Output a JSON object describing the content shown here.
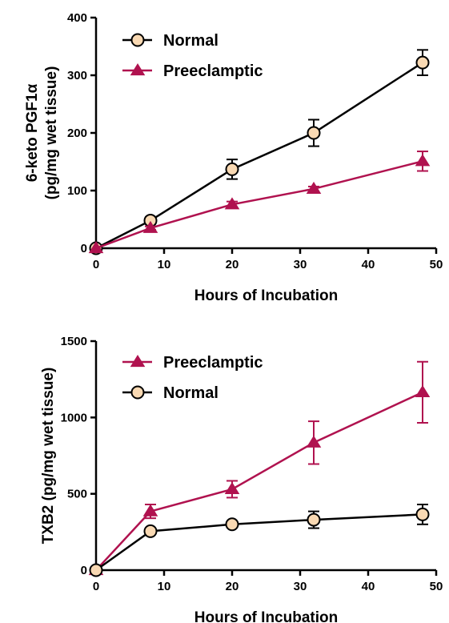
{
  "chart_data": [
    {
      "type": "line",
      "title": "",
      "xlabel": "Hours of Incubation",
      "ylabel_lines": [
        "6-keto PGF1α",
        "(pg/mg wet tissue)"
      ],
      "xlim": [
        0,
        50
      ],
      "ylim": [
        0,
        400
      ],
      "x_ticks": [
        0,
        10,
        20,
        30,
        40,
        50
      ],
      "y_ticks": [
        0,
        100,
        200,
        300,
        400
      ],
      "grid": false,
      "legend_position": "top-left",
      "series": [
        {
          "name": "Normal",
          "marker": "circle",
          "line_color": "#000000",
          "marker_fill": "#f9d9b3",
          "x": [
            0,
            8,
            20,
            32,
            48
          ],
          "y": [
            0,
            48,
            137,
            200,
            322
          ],
          "err": [
            0,
            6,
            17,
            23,
            22
          ]
        },
        {
          "name": "Preeclamptic",
          "marker": "triangle",
          "line_color": "#b0124f",
          "marker_fill": "#b0124f",
          "x": [
            0,
            8,
            20,
            32,
            48
          ],
          "y": [
            0,
            35,
            76,
            103,
            151
          ],
          "err": [
            0,
            3,
            5,
            4,
            17
          ]
        }
      ]
    },
    {
      "type": "line",
      "title": "",
      "xlabel": "Hours of Incubation",
      "ylabel_lines": [
        "TXB2 (pg/mg wet tissue)"
      ],
      "xlim": [
        0,
        50
      ],
      "ylim": [
        0,
        1500
      ],
      "x_ticks": [
        0,
        10,
        20,
        30,
        40,
        50
      ],
      "y_ticks": [
        0,
        500,
        1000,
        1500
      ],
      "grid": false,
      "legend_position": "top-left",
      "series": [
        {
          "name": "Preeclamptic",
          "marker": "triangle",
          "line_color": "#b0124f",
          "marker_fill": "#b0124f",
          "x": [
            0,
            8,
            20,
            32,
            48
          ],
          "y": [
            0,
            385,
            530,
            835,
            1165
          ],
          "err": [
            0,
            45,
            55,
            140,
            200
          ]
        },
        {
          "name": "Normal",
          "marker": "circle",
          "line_color": "#000000",
          "marker_fill": "#f9d9b3",
          "x": [
            0,
            8,
            20,
            32,
            48
          ],
          "y": [
            0,
            255,
            300,
            330,
            365
          ],
          "err": [
            0,
            15,
            15,
            55,
            65
          ]
        }
      ]
    }
  ]
}
